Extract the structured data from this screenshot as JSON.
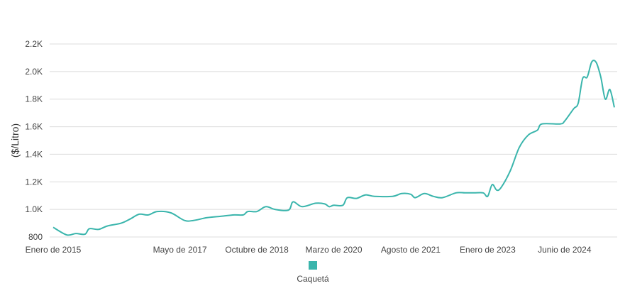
{
  "chart_data": {
    "type": "line",
    "title": "",
    "xlabel": "",
    "ylabel": "($/Litro)",
    "ylim": [
      800,
      2200
    ],
    "y_ticks": [
      800,
      1000,
      1200,
      1400,
      1600,
      1800,
      2000,
      2200
    ],
    "y_tick_labels": [
      "800",
      "1.0K",
      "1.2K",
      "1.4K",
      "1.6K",
      "1.8K",
      "2.0K",
      "2.2K"
    ],
    "x_range": [
      "2015-01",
      "2025-05"
    ],
    "x_tick_labels": [
      {
        "date": "2015-01",
        "label": "Enero de 2015"
      },
      {
        "date": "2017-05",
        "label": "Mayo de 2017"
      },
      {
        "date": "2018-10",
        "label": "Octubre de 2018"
      },
      {
        "date": "2020-03",
        "label": "Marzo de 2020"
      },
      {
        "date": "2021-08",
        "label": "Agosto de 2021"
      },
      {
        "date": "2023-01",
        "label": "Enero de 2023"
      },
      {
        "date": "2024-06",
        "label": "Junio de 2024"
      }
    ],
    "grid": true,
    "legend_position": "bottom",
    "series": [
      {
        "name": "Caquetá",
        "color": "#3ab5ac",
        "points": [
          [
            "2015-01",
            870
          ],
          [
            "2015-04",
            815
          ],
          [
            "2015-06",
            825
          ],
          [
            "2015-08",
            820
          ],
          [
            "2015-09",
            860
          ],
          [
            "2015-11",
            855
          ],
          [
            "2016-01",
            880
          ],
          [
            "2016-04",
            900
          ],
          [
            "2016-06",
            930
          ],
          [
            "2016-08",
            965
          ],
          [
            "2016-10",
            960
          ],
          [
            "2016-12",
            985
          ],
          [
            "2017-03",
            975
          ],
          [
            "2017-06",
            920
          ],
          [
            "2017-08",
            920
          ],
          [
            "2017-11",
            940
          ],
          [
            "2018-02",
            950
          ],
          [
            "2018-05",
            960
          ],
          [
            "2018-07",
            960
          ],
          [
            "2018-08",
            985
          ],
          [
            "2018-10",
            985
          ],
          [
            "2018-12",
            1020
          ],
          [
            "2019-02",
            1000
          ],
          [
            "2019-05",
            995
          ],
          [
            "2019-06",
            1055
          ],
          [
            "2019-08",
            1020
          ],
          [
            "2019-11",
            1045
          ],
          [
            "2020-01",
            1040
          ],
          [
            "2020-02",
            1020
          ],
          [
            "2020-03",
            1030
          ],
          [
            "2020-05",
            1030
          ],
          [
            "2020-06",
            1085
          ],
          [
            "2020-08",
            1080
          ],
          [
            "2020-10",
            1105
          ],
          [
            "2020-12",
            1095
          ],
          [
            "2021-04",
            1095
          ],
          [
            "2021-06",
            1115
          ],
          [
            "2021-08",
            1110
          ],
          [
            "2021-09",
            1085
          ],
          [
            "2021-11",
            1115
          ],
          [
            "2022-01",
            1095
          ],
          [
            "2022-03",
            1085
          ],
          [
            "2022-06",
            1120
          ],
          [
            "2022-08",
            1120
          ],
          [
            "2022-10",
            1120
          ],
          [
            "2022-12",
            1120
          ],
          [
            "2023-01",
            1095
          ],
          [
            "2023-02",
            1180
          ],
          [
            "2023-03",
            1140
          ],
          [
            "2023-04",
            1160
          ],
          [
            "2023-06",
            1280
          ],
          [
            "2023-08",
            1450
          ],
          [
            "2023-10",
            1540
          ],
          [
            "2023-12",
            1575
          ],
          [
            "2024-01",
            1620
          ],
          [
            "2024-05",
            1620
          ],
          [
            "2024-06",
            1640
          ],
          [
            "2024-08",
            1730
          ],
          [
            "2024-09",
            1770
          ],
          [
            "2024-10",
            1950
          ],
          [
            "2024-11",
            1960
          ],
          [
            "2024-12",
            2070
          ],
          [
            "2025-01",
            2065
          ],
          [
            "2025-02",
            1960
          ],
          [
            "2025-03",
            1800
          ],
          [
            "2025-04",
            1870
          ],
          [
            "2025-05",
            1740
          ]
        ]
      }
    ]
  }
}
